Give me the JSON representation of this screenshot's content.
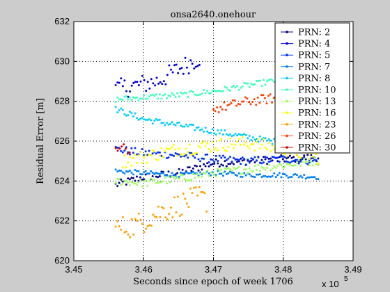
{
  "chart_data": {
    "type": "scatter",
    "title": "onsa2640.onehour",
    "xlabel": "Seconds since epoch of week 1706",
    "ylabel": "Residual Error [m]",
    "x_exponent_label": "x 10",
    "x_exponent": "5",
    "xlim": [
      3.45,
      3.49
    ],
    "ylim": [
      620,
      632
    ],
    "xticks": [
      "3.45",
      "3.46",
      "3.47",
      "3.48",
      "3.49"
    ],
    "yticks": [
      "620",
      "622",
      "624",
      "626",
      "628",
      "630",
      "632"
    ],
    "grid": true,
    "legend_position": "top-right",
    "series": [
      {
        "name": "PRN: 2",
        "color": "#00008f",
        "x_range": [
          3.456,
          3.485
        ],
        "y_points": [
          [
            3.456,
            623.8
          ],
          [
            3.46,
            624.2
          ],
          [
            3.465,
            624.4
          ],
          [
            3.47,
            624.9
          ],
          [
            3.475,
            625.0
          ],
          [
            3.48,
            625.1
          ],
          [
            3.485,
            625.2
          ]
        ],
        "spread": 0.2
      },
      {
        "name": "PRN: 4",
        "color": "#0000df",
        "x_range": [
          3.456,
          3.468
        ],
        "y_points": [
          [
            3.456,
            628.6
          ],
          [
            3.459,
            628.8
          ],
          [
            3.462,
            629.0
          ],
          [
            3.465,
            629.6
          ],
          [
            3.468,
            630.2
          ]
        ],
        "spread": 0.5
      },
      {
        "name": "PRN: 5",
        "color": "#0030ff",
        "x_range": [
          3.456,
          3.485
        ],
        "y_points": [
          [
            3.456,
            625.6
          ],
          [
            3.46,
            625.4
          ],
          [
            3.465,
            625.3
          ],
          [
            3.47,
            625.1
          ],
          [
            3.475,
            625.0
          ],
          [
            3.48,
            625.1
          ],
          [
            3.485,
            625.0
          ]
        ],
        "spread": 0.2
      },
      {
        "name": "PRN: 7",
        "color": "#0080ff",
        "x_range": [
          3.456,
          3.485
        ],
        "y_points": [
          [
            3.456,
            624.5
          ],
          [
            3.46,
            624.4
          ],
          [
            3.465,
            624.3
          ],
          [
            3.47,
            624.4
          ],
          [
            3.475,
            624.3
          ],
          [
            3.48,
            624.3
          ],
          [
            3.485,
            624.2
          ]
        ],
        "spread": 0.12
      },
      {
        "name": "PRN: 8",
        "color": "#00cfff",
        "x_range": [
          3.456,
          3.485
        ],
        "y_points": [
          [
            3.456,
            627.6
          ],
          [
            3.46,
            627.1
          ],
          [
            3.465,
            626.8
          ],
          [
            3.47,
            626.5
          ],
          [
            3.475,
            626.2
          ],
          [
            3.48,
            625.9
          ],
          [
            3.485,
            625.6
          ]
        ],
        "spread": 0.15
      },
      {
        "name": "PRN: 10",
        "color": "#40ffbf",
        "x_range": [
          3.456,
          3.485
        ],
        "y_points": [
          [
            3.456,
            628.1
          ],
          [
            3.46,
            628.2
          ],
          [
            3.465,
            628.3
          ],
          [
            3.47,
            628.5
          ],
          [
            3.475,
            628.8
          ],
          [
            3.48,
            629.1
          ],
          [
            3.485,
            629.4
          ]
        ],
        "spread": 0.15
      },
      {
        "name": "PRN: 13",
        "color": "#9fff60",
        "x_range": [
          3.456,
          3.485
        ],
        "y_points": [
          [
            3.456,
            624.0
          ],
          [
            3.46,
            623.9
          ],
          [
            3.465,
            624.1
          ],
          [
            3.47,
            624.4
          ],
          [
            3.475,
            624.6
          ],
          [
            3.48,
            624.8
          ],
          [
            3.485,
            625.0
          ]
        ],
        "spread": 0.2
      },
      {
        "name": "PRN: 16",
        "color": "#ffff00",
        "x_range": [
          3.457,
          3.485
        ],
        "y_points": [
          [
            3.457,
            625.0
          ],
          [
            3.46,
            625.2
          ],
          [
            3.465,
            625.6
          ],
          [
            3.47,
            625.8
          ],
          [
            3.475,
            625.9
          ],
          [
            3.48,
            625.6
          ],
          [
            3.485,
            625.2
          ]
        ],
        "spread": 0.35
      },
      {
        "name": "PRN: 23",
        "color": "#ffa000",
        "x_range": [
          3.456,
          3.469
        ],
        "y_points": [
          [
            3.456,
            621.6
          ],
          [
            3.459,
            621.8
          ],
          [
            3.462,
            622.4
          ],
          [
            3.465,
            622.8
          ],
          [
            3.468,
            623.2
          ],
          [
            3.469,
            623.0
          ]
        ],
        "spread": 0.6
      },
      {
        "name": "PRN: 26",
        "color": "#ff4000",
        "x_range": [
          3.47,
          3.485
        ],
        "y_points": [
          [
            3.47,
            627.6
          ],
          [
            3.475,
            628.0
          ],
          [
            3.48,
            628.2
          ],
          [
            3.485,
            628.4
          ]
        ],
        "spread": 0.25
      },
      {
        "name": "PRN: 30",
        "color": "#cf0000",
        "x_range": [
          3.456,
          3.458
        ],
        "y_points": [
          [
            3.456,
            625.6
          ],
          [
            3.457,
            625.8
          ],
          [
            3.458,
            625.4
          ]
        ],
        "spread": 0.15
      }
    ]
  }
}
